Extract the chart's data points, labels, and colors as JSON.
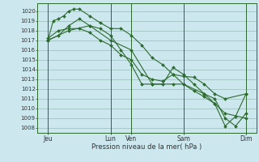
{
  "background_color": "#cce8ee",
  "grid_color": "#99bbbb",
  "line_color": "#2d6a2d",
  "marker": "D",
  "marker_size": 2,
  "line_width": 0.8,
  "xlabel": "Pression niveau de la mer( hPa )",
  "ylim": [
    1007.5,
    1020.8
  ],
  "yticks": [
    1008,
    1009,
    1010,
    1011,
    1012,
    1013,
    1014,
    1015,
    1016,
    1017,
    1018,
    1019,
    1020
  ],
  "xlim": [
    0,
    252
  ],
  "xtick_labels": [
    "Jeu",
    "Lun",
    "Ven",
    "Sam",
    "Dim"
  ],
  "xtick_positions": [
    12,
    84,
    108,
    168,
    240
  ],
  "day_lines": [
    12,
    84,
    108,
    168,
    240
  ],
  "series": [
    {
      "x": [
        12,
        18,
        24,
        30,
        36,
        42,
        48,
        60,
        72,
        84,
        96,
        108,
        120,
        132,
        144,
        156,
        168,
        180,
        192,
        204,
        216,
        240
      ],
      "y": [
        1017.0,
        1019.0,
        1019.2,
        1019.5,
        1020.0,
        1020.2,
        1020.2,
        1019.5,
        1018.8,
        1018.2,
        1018.2,
        1017.5,
        1016.5,
        1015.2,
        1014.5,
        1013.5,
        1013.3,
        1013.2,
        1012.5,
        1011.5,
        1011.0,
        1011.5
      ]
    },
    {
      "x": [
        12,
        24,
        36,
        48,
        60,
        72,
        84,
        96,
        108,
        120,
        132,
        144,
        156,
        168,
        180,
        192,
        204,
        216,
        240
      ],
      "y": [
        1017.2,
        1018.0,
        1018.2,
        1018.2,
        1017.8,
        1017.0,
        1016.5,
        1015.5,
        1015.0,
        1013.5,
        1013.0,
        1012.8,
        1013.5,
        1012.5,
        1011.8,
        1011.2,
        1010.5,
        1009.5,
        1009.0
      ]
    },
    {
      "x": [
        12,
        24,
        36,
        48,
        60,
        72,
        84,
        96,
        108,
        120,
        132,
        144,
        156,
        168,
        180,
        192,
        204,
        216,
        228,
        240
      ],
      "y": [
        1017.0,
        1017.5,
        1018.5,
        1019.2,
        1018.5,
        1018.2,
        1017.5,
        1016.0,
        1014.5,
        1012.5,
        1012.5,
        1012.5,
        1014.2,
        1013.5,
        1012.5,
        1011.5,
        1010.5,
        1008.2,
        1009.2,
        1011.5
      ]
    },
    {
      "x": [
        12,
        36,
        60,
        84,
        108,
        132,
        156,
        168,
        192,
        204,
        216,
        228,
        240
      ],
      "y": [
        1017.0,
        1018.0,
        1018.5,
        1017.0,
        1016.0,
        1012.5,
        1012.5,
        1012.5,
        1011.5,
        1011.0,
        1009.0,
        1008.2,
        1009.5
      ]
    }
  ]
}
